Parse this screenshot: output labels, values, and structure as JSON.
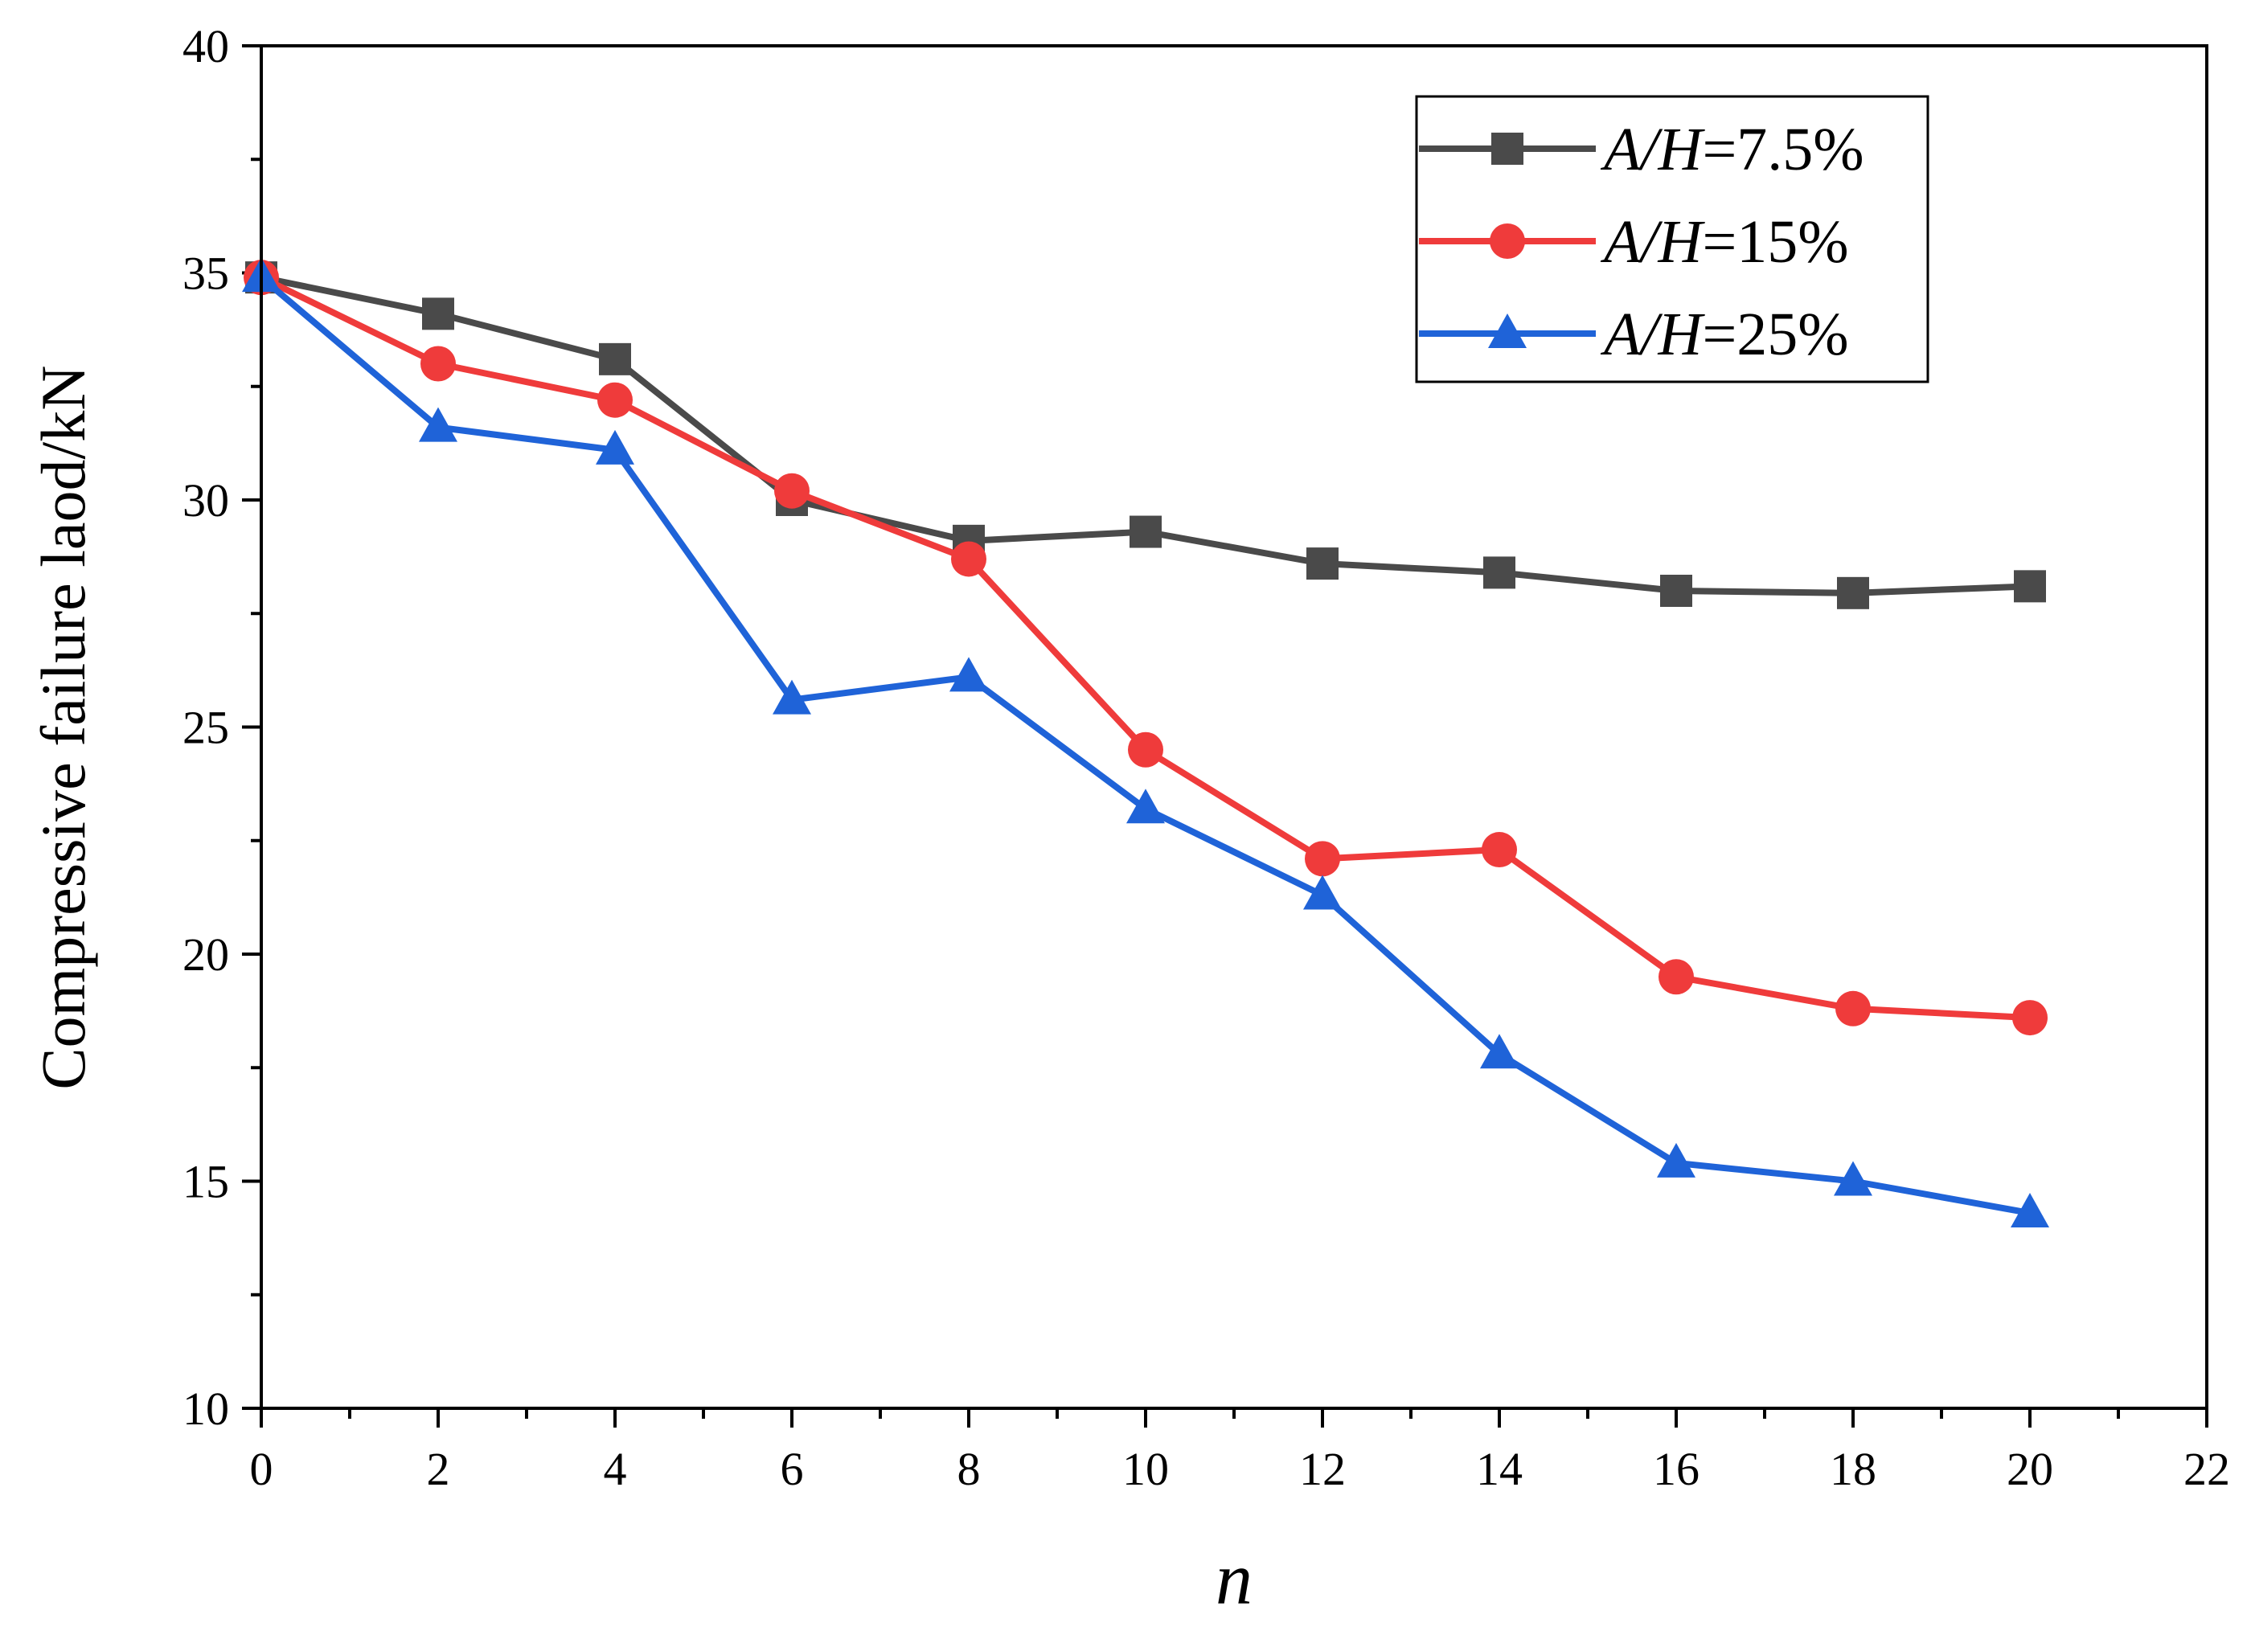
{
  "chart_data": {
    "type": "line",
    "title": "",
    "xlabel": "n",
    "ylabel": "Compressive failure laod/kN",
    "xlim": [
      0,
      22
    ],
    "ylim": [
      10,
      40
    ],
    "x_ticks": [
      0,
      2,
      4,
      6,
      8,
      10,
      12,
      14,
      16,
      18,
      20,
      22
    ],
    "y_ticks": [
      10,
      15,
      20,
      25,
      30,
      35,
      40
    ],
    "legend_position": "top-right",
    "x": [
      0,
      2,
      4,
      6,
      8,
      10,
      12,
      14,
      16,
      18,
      20
    ],
    "series": [
      {
        "name_prefix": "A/H",
        "name_suffix": "=7.5%",
        "marker": "square",
        "color": "#4a4a4a",
        "values": [
          34.9,
          34.1,
          33.1,
          30.0,
          29.1,
          29.3,
          28.6,
          28.4,
          28.0,
          27.95,
          28.1
        ]
      },
      {
        "name_prefix": "A/H",
        "name_suffix": "=15%",
        "marker": "circle",
        "color": "#ef3b3b",
        "values": [
          34.9,
          33.0,
          32.2,
          30.2,
          28.7,
          24.5,
          22.1,
          22.3,
          19.5,
          18.8,
          18.6
        ]
      },
      {
        "name_prefix": "A/H",
        "name_suffix": "=25%",
        "marker": "triangle",
        "color": "#1f63d8",
        "values": [
          34.9,
          31.6,
          31.1,
          25.6,
          26.1,
          23.2,
          21.3,
          17.8,
          15.4,
          15.0,
          14.3
        ]
      }
    ]
  }
}
